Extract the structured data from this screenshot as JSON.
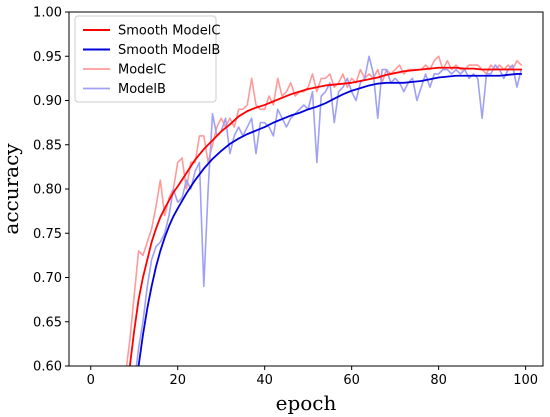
{
  "chart_data": {
    "type": "line",
    "xlabel": "epoch",
    "ylabel": "accuracy",
    "xlim": [
      -5,
      104
    ],
    "ylim": [
      0.6,
      1.0
    ],
    "x_ticks": [
      0,
      20,
      40,
      60,
      80,
      100
    ],
    "y_ticks": [
      0.6,
      0.65,
      0.7,
      0.75,
      0.8,
      0.85,
      0.9,
      0.95,
      1.0
    ],
    "x_tick_labels": [
      "0",
      "20",
      "40",
      "60",
      "80",
      "100"
    ],
    "y_tick_labels": [
      "0.60",
      "0.65",
      "0.70",
      "0.75",
      "0.80",
      "0.85",
      "0.90",
      "0.95",
      "1.00"
    ],
    "grid": false,
    "legend_position": "upper-left",
    "legend": [
      "Smooth ModelC",
      "Smooth ModelB",
      "ModelC",
      "ModelB"
    ],
    "series": [
      {
        "name": "Smooth ModelC",
        "color": "#ff0000",
        "style": "solid",
        "x": [
          8,
          9,
          10,
          11,
          12,
          13,
          14,
          15,
          16,
          17,
          18,
          19,
          20,
          22,
          24,
          26,
          28,
          30,
          32,
          34,
          36,
          38,
          40,
          42,
          44,
          46,
          48,
          50,
          52,
          54,
          56,
          58,
          60,
          62,
          64,
          66,
          68,
          70,
          72,
          74,
          76,
          78,
          80,
          82,
          84,
          86,
          88,
          90,
          92,
          94,
          96,
          98,
          99
        ],
        "y": [
          0.56,
          0.6,
          0.64,
          0.675,
          0.7,
          0.72,
          0.74,
          0.755,
          0.768,
          0.778,
          0.787,
          0.796,
          0.803,
          0.818,
          0.833,
          0.845,
          0.855,
          0.865,
          0.873,
          0.882,
          0.888,
          0.892,
          0.895,
          0.899,
          0.903,
          0.907,
          0.91,
          0.913,
          0.915,
          0.917,
          0.918,
          0.919,
          0.92,
          0.922,
          0.924,
          0.926,
          0.929,
          0.931,
          0.933,
          0.934,
          0.935,
          0.936,
          0.937,
          0.937,
          0.937,
          0.936,
          0.936,
          0.935,
          0.935,
          0.935,
          0.935,
          0.935,
          0.935
        ]
      },
      {
        "name": "Smooth ModelB",
        "color": "#0000dd",
        "style": "solid",
        "x": [
          10,
          11,
          12,
          13,
          14,
          15,
          16,
          17,
          18,
          19,
          20,
          22,
          24,
          26,
          28,
          30,
          32,
          34,
          36,
          38,
          40,
          42,
          44,
          46,
          48,
          50,
          52,
          54,
          56,
          58,
          60,
          62,
          64,
          66,
          68,
          70,
          72,
          74,
          76,
          78,
          80,
          82,
          84,
          86,
          88,
          90,
          92,
          94,
          96,
          98,
          99
        ],
        "y": [
          0.57,
          0.6,
          0.635,
          0.665,
          0.69,
          0.712,
          0.73,
          0.745,
          0.758,
          0.769,
          0.778,
          0.795,
          0.81,
          0.823,
          0.834,
          0.843,
          0.851,
          0.857,
          0.862,
          0.866,
          0.87,
          0.875,
          0.879,
          0.883,
          0.886,
          0.89,
          0.893,
          0.897,
          0.902,
          0.907,
          0.911,
          0.914,
          0.917,
          0.919,
          0.92,
          0.92,
          0.92,
          0.921,
          0.922,
          0.924,
          0.926,
          0.927,
          0.928,
          0.928,
          0.928,
          0.928,
          0.928,
          0.928,
          0.929,
          0.93,
          0.93
        ]
      },
      {
        "name": "ModelC",
        "color": "#ff9a9a",
        "style": "solid",
        "x": [
          8,
          9,
          10,
          11,
          12,
          13,
          14,
          15,
          16,
          17,
          18,
          19,
          20,
          21,
          22,
          23,
          24,
          25,
          26,
          27,
          28,
          29,
          30,
          31,
          32,
          33,
          34,
          35,
          36,
          37,
          38,
          39,
          40,
          41,
          42,
          43,
          44,
          45,
          46,
          47,
          48,
          49,
          50,
          51,
          52,
          53,
          54,
          55,
          56,
          57,
          58,
          59,
          60,
          61,
          62,
          63,
          64,
          65,
          66,
          67,
          68,
          69,
          70,
          71,
          72,
          73,
          74,
          75,
          76,
          77,
          78,
          79,
          80,
          81,
          82,
          83,
          84,
          85,
          86,
          87,
          88,
          89,
          90,
          91,
          92,
          93,
          94,
          95,
          96,
          97,
          98,
          99
        ],
        "y": [
          0.59,
          0.63,
          0.68,
          0.73,
          0.725,
          0.74,
          0.755,
          0.78,
          0.81,
          0.77,
          0.79,
          0.8,
          0.83,
          0.835,
          0.8,
          0.83,
          0.83,
          0.86,
          0.86,
          0.83,
          0.85,
          0.87,
          0.88,
          0.87,
          0.88,
          0.87,
          0.89,
          0.89,
          0.895,
          0.925,
          0.895,
          0.89,
          0.89,
          0.905,
          0.895,
          0.925,
          0.905,
          0.91,
          0.92,
          0.905,
          0.91,
          0.91,
          0.915,
          0.93,
          0.91,
          0.925,
          0.925,
          0.93,
          0.915,
          0.92,
          0.93,
          0.915,
          0.925,
          0.92,
          0.935,
          0.925,
          0.93,
          0.925,
          0.935,
          0.92,
          0.935,
          0.93,
          0.935,
          0.94,
          0.93,
          0.935,
          0.935,
          0.935,
          0.935,
          0.94,
          0.935,
          0.945,
          0.95,
          0.935,
          0.945,
          0.935,
          0.94,
          0.935,
          0.935,
          0.94,
          0.94,
          0.94,
          0.935,
          0.93,
          0.94,
          0.935,
          0.94,
          0.935,
          0.94,
          0.935,
          0.945,
          0.94
        ]
      },
      {
        "name": "ModelB",
        "color": "#a0a0f5",
        "style": "solid",
        "x": [
          10,
          11,
          12,
          13,
          14,
          15,
          16,
          17,
          18,
          19,
          20,
          21,
          22,
          23,
          24,
          25,
          26,
          27,
          28,
          29,
          30,
          31,
          32,
          33,
          34,
          35,
          36,
          37,
          38,
          39,
          40,
          41,
          42,
          43,
          44,
          45,
          46,
          47,
          48,
          49,
          50,
          51,
          52,
          53,
          54,
          55,
          56,
          57,
          58,
          59,
          60,
          61,
          62,
          63,
          64,
          65,
          66,
          67,
          68,
          69,
          70,
          71,
          72,
          73,
          74,
          75,
          76,
          77,
          78,
          79,
          80,
          81,
          82,
          83,
          84,
          85,
          86,
          87,
          88,
          89,
          90,
          91,
          92,
          93,
          94,
          95,
          96,
          97,
          98,
          99
        ],
        "y": [
          0.58,
          0.62,
          0.65,
          0.69,
          0.72,
          0.735,
          0.74,
          0.75,
          0.77,
          0.8,
          0.785,
          0.79,
          0.81,
          0.8,
          0.82,
          0.83,
          0.69,
          0.8,
          0.885,
          0.86,
          0.865,
          0.88,
          0.84,
          0.86,
          0.87,
          0.86,
          0.87,
          0.88,
          0.84,
          0.875,
          0.875,
          0.87,
          0.86,
          0.89,
          0.88,
          0.87,
          0.88,
          0.885,
          0.89,
          0.895,
          0.89,
          0.91,
          0.83,
          0.905,
          0.91,
          0.92,
          0.875,
          0.91,
          0.915,
          0.925,
          0.91,
          0.9,
          0.92,
          0.925,
          0.95,
          0.93,
          0.88,
          0.935,
          0.935,
          0.92,
          0.925,
          0.92,
          0.91,
          0.92,
          0.925,
          0.9,
          0.915,
          0.93,
          0.915,
          0.93,
          0.93,
          0.935,
          0.935,
          0.93,
          0.935,
          0.93,
          0.935,
          0.925,
          0.93,
          0.925,
          0.88,
          0.93,
          0.93,
          0.94,
          0.935,
          0.925,
          0.935,
          0.94,
          0.915,
          0.935
        ]
      }
    ]
  }
}
